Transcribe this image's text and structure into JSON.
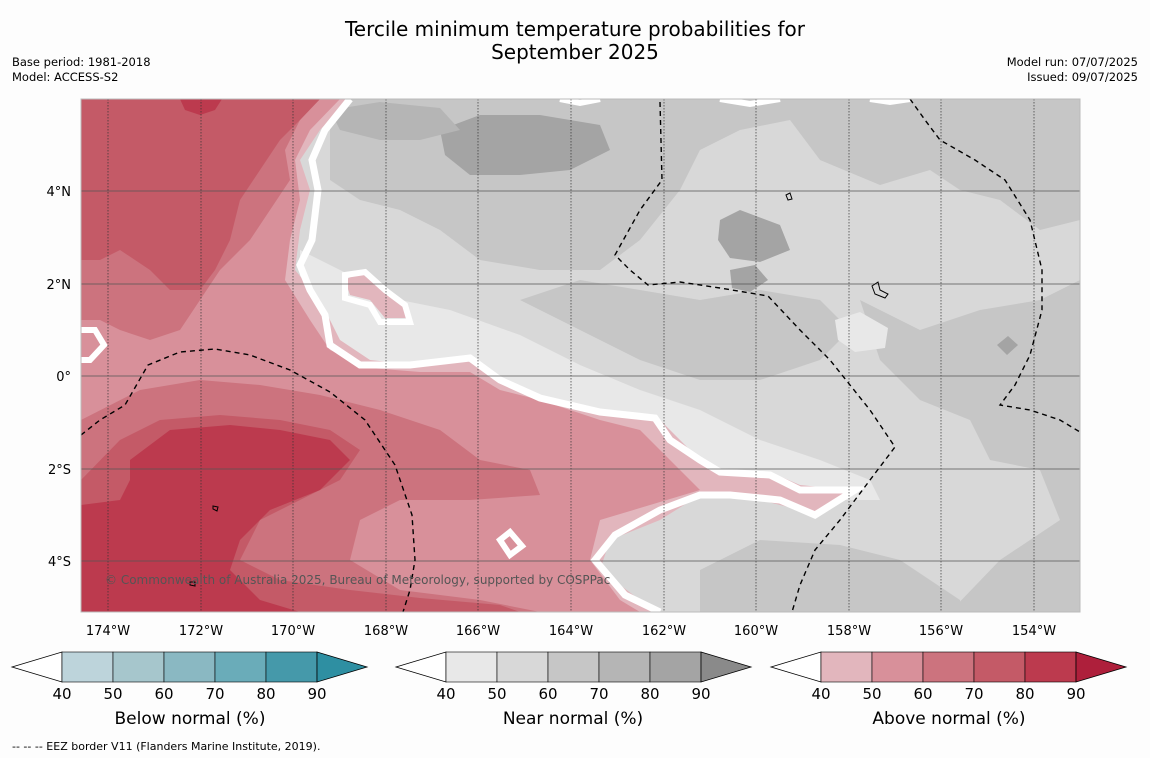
{
  "title": {
    "line1": "Tercile minimum temperature probabilities for",
    "line2": "September 2025"
  },
  "meta": {
    "base_period": "Base period: 1981-2018",
    "model": "Model: ACCESS-S2",
    "model_run": "Model run: 07/07/2025",
    "issued": "Issued: 09/07/2025"
  },
  "map": {
    "lon_ticks": [
      "174°W",
      "172°W",
      "170°W",
      "168°W",
      "166°W",
      "164°W",
      "162°W",
      "160°W",
      "158°W",
      "156°W",
      "154°W"
    ],
    "lat_ticks": [
      "4°N",
      "2°N",
      "0°",
      "2°S",
      "4°S"
    ],
    "copyright": "© Commonwealth of Australia 2025, Bureau of Meteorology, supported by COSPPac"
  },
  "colorbars": [
    {
      "label": "Below normal (%)",
      "ticks": [
        "40",
        "50",
        "60",
        "70",
        "80",
        "90"
      ],
      "colors": [
        "#ffffff",
        "#bdd4db",
        "#a6c6cc",
        "#8ab8c2",
        "#6aacb9",
        "#4599aa",
        "#2e8fa2"
      ]
    },
    {
      "label": "Near normal (%)",
      "ticks": [
        "40",
        "50",
        "60",
        "70",
        "80",
        "90"
      ],
      "colors": [
        "#ffffff",
        "#e8e8e8",
        "#d8d8d8",
        "#c6c6c6",
        "#b5b5b5",
        "#a4a4a4",
        "#8a8a8a"
      ]
    },
    {
      "label": "Above normal (%)",
      "ticks": [
        "40",
        "50",
        "60",
        "70",
        "80",
        "90"
      ],
      "colors": [
        "#ffffff",
        "#e2b6bd",
        "#d8909a",
        "#cc737e",
        "#c45a67",
        "#bc3a4e",
        "#ae1f3b"
      ]
    }
  ],
  "footnote": "--  --  -- EEZ border V11 (Flanders Marine Institute, 2019)."
}
